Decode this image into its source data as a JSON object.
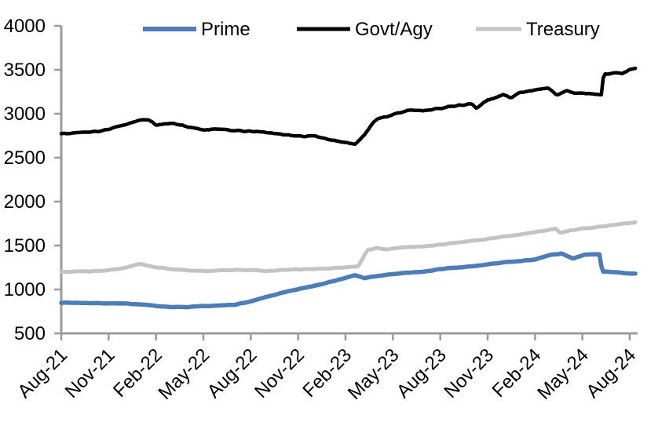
{
  "chart_data": {
    "type": "line",
    "title": "",
    "xlabel": "",
    "ylabel": "",
    "ylim": [
      500,
      4000
    ],
    "y_ticks": [
      500,
      1000,
      1500,
      2000,
      2500,
      3000,
      3500,
      4000
    ],
    "x_tick_labels": [
      "Aug-21",
      "Nov-21",
      "Feb-22",
      "May-22",
      "Aug-22",
      "Nov-22",
      "Feb-23",
      "May-23",
      "Aug-23",
      "Nov-23",
      "Feb-24",
      "May-24",
      "Aug-24"
    ],
    "x_unit": "months-since-Aug-21",
    "x_tick_months": [
      0,
      3,
      6,
      9,
      12,
      15,
      18,
      21,
      24,
      27,
      30,
      33,
      36
    ],
    "x_range_months": [
      0,
      36.4
    ],
    "grid": false,
    "legend_position": "top",
    "axis_color": "#9b9b9b",
    "text_color": "#000000",
    "series": [
      {
        "name": "Prime",
        "color": "#4a7ebb",
        "line_width": 5.5,
        "noise": 4,
        "points": [
          [
            0,
            850
          ],
          [
            1,
            848
          ],
          [
            2,
            845
          ],
          [
            3,
            842
          ],
          [
            4,
            838
          ],
          [
            5,
            832
          ],
          [
            6,
            812
          ],
          [
            7,
            800
          ],
          [
            8,
            798
          ],
          [
            9,
            810
          ],
          [
            10,
            815
          ],
          [
            11,
            828
          ],
          [
            12,
            862
          ],
          [
            13,
            915
          ],
          [
            14,
            962
          ],
          [
            15,
            1002
          ],
          [
            16,
            1042
          ],
          [
            17,
            1085
          ],
          [
            18,
            1130
          ],
          [
            18.6,
            1162
          ],
          [
            19.2,
            1130
          ],
          [
            20,
            1152
          ],
          [
            21,
            1175
          ],
          [
            22,
            1190
          ],
          [
            23,
            1202
          ],
          [
            24,
            1232
          ],
          [
            25,
            1247
          ],
          [
            26,
            1262
          ],
          [
            27,
            1285
          ],
          [
            28,
            1308
          ],
          [
            29,
            1320
          ],
          [
            30,
            1342
          ],
          [
            31,
            1395
          ],
          [
            31.7,
            1408
          ],
          [
            32.4,
            1352
          ],
          [
            33.2,
            1398
          ],
          [
            34.1,
            1400
          ],
          [
            34.25,
            1205
          ],
          [
            35,
            1198
          ],
          [
            36,
            1182
          ],
          [
            36.4,
            1180
          ]
        ]
      },
      {
        "name": "Govt/Agy",
        "color": "#000000",
        "line_width": 4.5,
        "noise": 10,
        "points": [
          [
            0,
            2775
          ],
          [
            1,
            2782
          ],
          [
            2,
            2792
          ],
          [
            3,
            2822
          ],
          [
            4,
            2872
          ],
          [
            5,
            2925
          ],
          [
            5.5,
            2935
          ],
          [
            6,
            2868
          ],
          [
            7,
            2890
          ],
          [
            8,
            2852
          ],
          [
            9,
            2812
          ],
          [
            10,
            2826
          ],
          [
            11,
            2812
          ],
          [
            12,
            2800
          ],
          [
            13,
            2788
          ],
          [
            14,
            2768
          ],
          [
            15,
            2742
          ],
          [
            16,
            2748
          ],
          [
            17,
            2705
          ],
          [
            18,
            2672
          ],
          [
            18.6,
            2652
          ],
          [
            19.2,
            2760
          ],
          [
            19.7,
            2890
          ],
          [
            20,
            2940
          ],
          [
            21,
            2990
          ],
          [
            22,
            3042
          ],
          [
            23,
            3035
          ],
          [
            24,
            3062
          ],
          [
            25,
            3090
          ],
          [
            26,
            3112
          ],
          [
            26.3,
            3052
          ],
          [
            26.7,
            3125
          ],
          [
            27,
            3155
          ],
          [
            28,
            3220
          ],
          [
            28.5,
            3180
          ],
          [
            29,
            3245
          ],
          [
            30,
            3268
          ],
          [
            30.8,
            3298
          ],
          [
            31.4,
            3215
          ],
          [
            32,
            3268
          ],
          [
            32.5,
            3230
          ],
          [
            33,
            3232
          ],
          [
            34,
            3222
          ],
          [
            34.2,
            3215
          ],
          [
            34.35,
            3448
          ],
          [
            35,
            3465
          ],
          [
            35.5,
            3455
          ],
          [
            36,
            3505
          ],
          [
            36.4,
            3520
          ]
        ]
      },
      {
        "name": "Treasury",
        "color": "#c3c3c3",
        "line_width": 5,
        "noise": 5,
        "points": [
          [
            0,
            1200
          ],
          [
            1,
            1205
          ],
          [
            2,
            1208
          ],
          [
            3,
            1220
          ],
          [
            4,
            1245
          ],
          [
            5,
            1292
          ],
          [
            6,
            1252
          ],
          [
            7,
            1232
          ],
          [
            8,
            1218
          ],
          [
            9,
            1210
          ],
          [
            10,
            1216
          ],
          [
            11,
            1222
          ],
          [
            12,
            1222
          ],
          [
            13,
            1208
          ],
          [
            14,
            1222
          ],
          [
            15,
            1228
          ],
          [
            16,
            1232
          ],
          [
            17,
            1242
          ],
          [
            18,
            1252
          ],
          [
            18.8,
            1262
          ],
          [
            19.4,
            1450
          ],
          [
            20,
            1472
          ],
          [
            20.6,
            1455
          ],
          [
            21,
            1470
          ],
          [
            22,
            1482
          ],
          [
            23,
            1492
          ],
          [
            24,
            1508
          ],
          [
            25,
            1532
          ],
          [
            26,
            1552
          ],
          [
            27,
            1575
          ],
          [
            28,
            1602
          ],
          [
            29,
            1622
          ],
          [
            30,
            1652
          ],
          [
            31,
            1680
          ],
          [
            31.3,
            1690
          ],
          [
            31.6,
            1642
          ],
          [
            32.2,
            1668
          ],
          [
            33,
            1692
          ],
          [
            34,
            1712
          ],
          [
            35,
            1735
          ],
          [
            36,
            1758
          ],
          [
            36.4,
            1762
          ]
        ]
      }
    ]
  }
}
